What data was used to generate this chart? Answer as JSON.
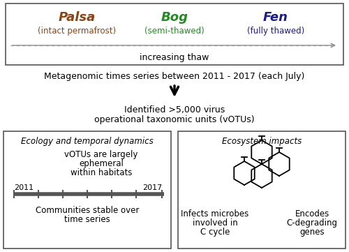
{
  "palsa_label": "Palsa",
  "palsa_sub": "(intact permafrost)",
  "palsa_color": "#8B4513",
  "bog_label": "Bog",
  "bog_sub": "(semi-thawed)",
  "bog_color": "#228B22",
  "fen_label": "Fen",
  "fen_sub": "(fully thawed)",
  "fen_color": "#1C1C8B",
  "thaw_label": "increasing thaw",
  "metagenomics_text": "Metagenomic times series between 2011 - 2017 (each July)",
  "identified_text1": "Identified >5,000 virus",
  "identified_text2": "operational taxonomic units (vOTUs)",
  "ecology_title": "Ecology and temporal dynamics",
  "ecology_text1": "vOTUs are largely",
  "ecology_text2": "ephemeral",
  "ecology_text3": "within habitats",
  "year_start": "2011",
  "year_end": "2017",
  "communities_text1": "Communities stable over",
  "communities_text2": "time series",
  "ecosystem_title": "Ecosystem impacts",
  "infects_text1": "Infects microbes",
  "infects_text2": "involved in",
  "infects_text3": "C cycle",
  "encodes_text1": "Encodes",
  "encodes_text2": "C-degrading",
  "encodes_text3": "genes",
  "bg_color": "#ffffff",
  "text_color": "#000000",
  "box_edge_color": "#555555",
  "fig_width": 5.0,
  "fig_height": 3.61,
  "dpi": 100
}
